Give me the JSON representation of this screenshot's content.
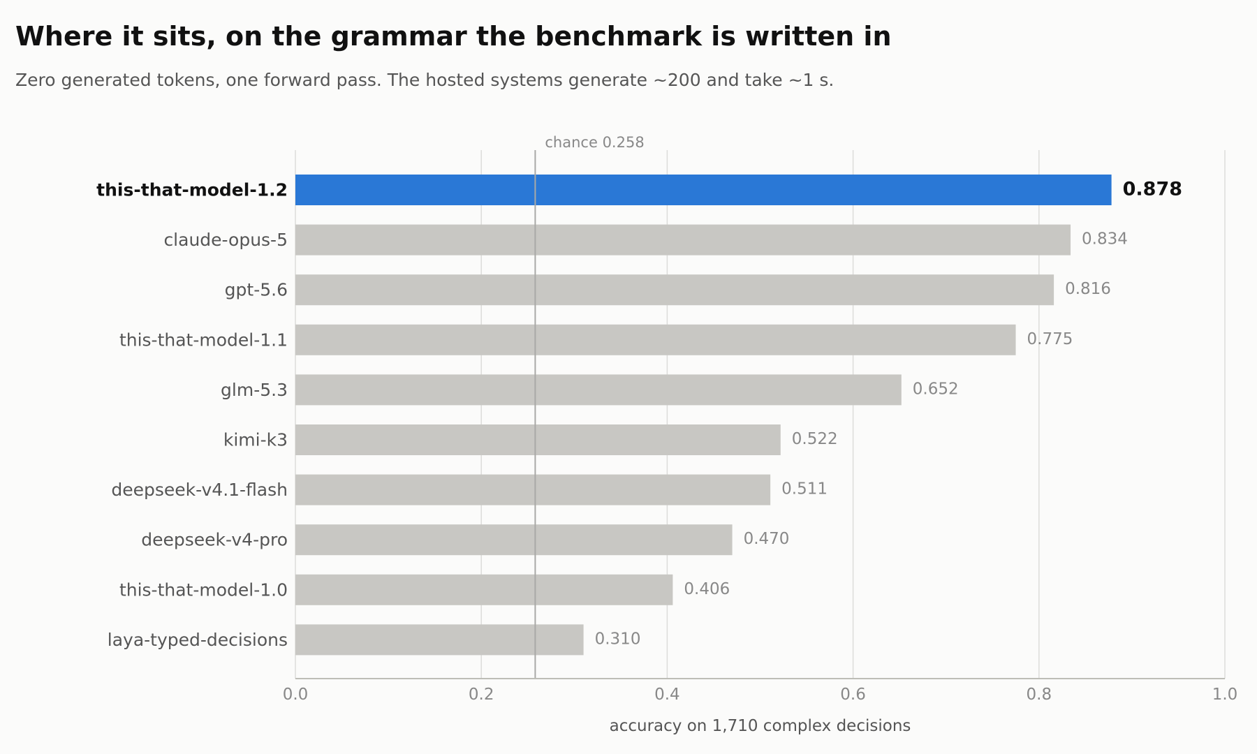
{
  "title": "Where it sits, on the grammar the benchmark is written in",
  "subtitle": "Zero generated tokens, one forward pass. The hosted systems generate ~200 and take ~1 s.",
  "chart_data": {
    "type": "bar",
    "orientation": "horizontal",
    "categories": [
      "this-that-model-1.2",
      "claude-opus-5",
      "gpt-5.6",
      "this-that-model-1.1",
      "glm-5.3",
      "kimi-k3",
      "deepseek-v4.1-flash",
      "deepseek-v4-pro",
      "this-that-model-1.0",
      "laya-typed-decisions"
    ],
    "values": [
      0.878,
      0.834,
      0.816,
      0.775,
      0.652,
      0.522,
      0.511,
      0.47,
      0.406,
      0.31
    ],
    "value_labels": [
      "0.878",
      "0.834",
      "0.816",
      "0.775",
      "0.652",
      "0.522",
      "0.511",
      "0.470",
      "0.406",
      "0.310"
    ],
    "highlight_index": 0,
    "xlabel": "accuracy on 1,710 complex decisions",
    "ylabel": "",
    "xlim": [
      0.0,
      1.0
    ],
    "xticks": [
      0.0,
      0.2,
      0.4,
      0.6,
      0.8,
      1.0
    ],
    "xtick_labels": [
      "0.0",
      "0.2",
      "0.4",
      "0.6",
      "0.8",
      "1.0"
    ],
    "reference_line": {
      "value": 0.258,
      "label": "chance 0.258"
    },
    "grid": true,
    "legend": "none",
    "colors": {
      "highlight": "#2a78d6",
      "bar": "#c8c7c3",
      "grid": "#dcdcda",
      "reference": "#a9a9a6",
      "axis": "#bdbdb6"
    }
  }
}
